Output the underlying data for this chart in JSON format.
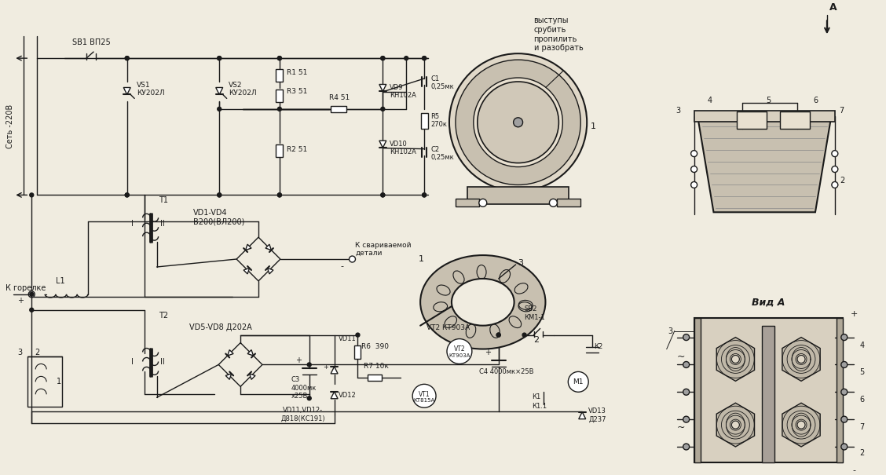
{
  "bg_color": "#f0ece0",
  "line_color": "#1a1a1a",
  "fig_width": 11.28,
  "fig_height": 6.05,
  "dpi": 100,
  "labels": {
    "sb1": "SB1 ВП25",
    "set220": "Сеть -220В",
    "vs1": "VS1\nКУ202Л",
    "vs2": "VS2\nКУ202Л",
    "r1": "R1 51",
    "r3": "R3 51",
    "r4": "R4 51",
    "r2": "R2 51",
    "vd9": "VD9\nКН102А",
    "vd10": "VD10\nКН102А",
    "c1": "C1\n0,25мк",
    "c2": "C2\n0,25мк",
    "r5": "R5\n270к",
    "t1": "T1",
    "vd1vd4": "VD1-VD4\nВ200(ВЛ200)",
    "l1": "L1",
    "k_gorelke": "К горелке",
    "k_svarivaemoi": "К свариваемой\nдетали",
    "t2": "T2",
    "vd5vd8": "VD5-VD8 Д202А",
    "c3": "C3\n4000мк\nх25В",
    "vd11": "VD11",
    "vd12": "VD12",
    "vd11vd12": "VD11,VD12-\nД818(КС191)",
    "r6": "R6  390",
    "r7": "R7 10к",
    "vt1": "VT1\nКТ815А",
    "vt2": "VT2 КТ903А",
    "sb2": "SB2\nКМ1-1",
    "m1": "M1",
    "k1": "К1",
    "k11": "К1.1",
    "k2": "К2",
    "c4": "С4 4000мк×25В",
    "vd13": "VD13\nД237",
    "vid_a": "Вид А",
    "A_arrow": "А",
    "vystup": "выступы\nсрубить\nпропилить\nи разобрать"
  }
}
